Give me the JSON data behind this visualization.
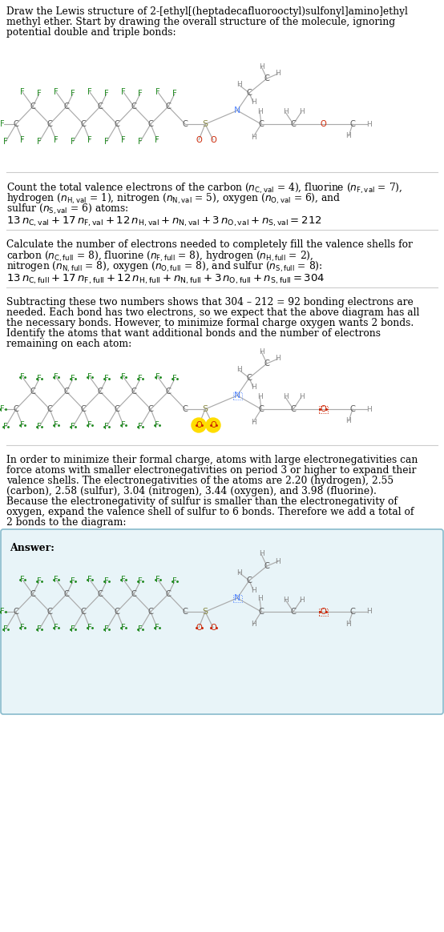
{
  "bg_color": "#ffffff",
  "F_color": "#228B22",
  "C_color": "#555555",
  "H_color": "#888888",
  "N_color": "#5588ff",
  "O_color": "#cc2200",
  "S_color": "#888844",
  "bond_color": "#aaaaaa",
  "highlight_color": "#ffdd00",
  "answer_bg": "#e8f4f8",
  "answer_border": "#88bbcc",
  "sep_color": "#cccccc",
  "s1_lines": [
    "Draw the Lewis structure of 2-[ethyl[(heptadecafluorooctyl)sulfonyl]amino]ethyl",
    "methyl ether. Start by drawing the overall structure of the molecule, ignoring",
    "potential double and triple bonds:"
  ],
  "s4_lines": [
    "Subtracting these two numbers shows that 304 – 212 = 92 bonding electrons are",
    "needed. Each bond has two electrons, so we expect that the above diagram has all",
    "the necessary bonds. However, to minimize formal charge oxygen wants 2 bonds.",
    "Identify the atoms that want additional bonds and the number of electrons",
    "remaining on each atom:"
  ],
  "s5_lines": [
    "In order to minimize their formal charge, atoms with large electronegativities can",
    "force atoms with smaller electronegativities on period 3 or higher to expand their",
    "valence shells. The electronegativities of the atoms are 2.20 (hydrogen), 2.55",
    "(carbon), 2.58 (sulfur), 3.04 (nitrogen), 3.44 (oxygen), and 3.98 (fluorine).",
    "Because the electronegativity of sulfur is smaller than the electronegativity of",
    "oxygen, expand the valence shell of sulfur to 6 bonds. Therefore we add a total of",
    "2 bonds to the diagram:"
  ]
}
